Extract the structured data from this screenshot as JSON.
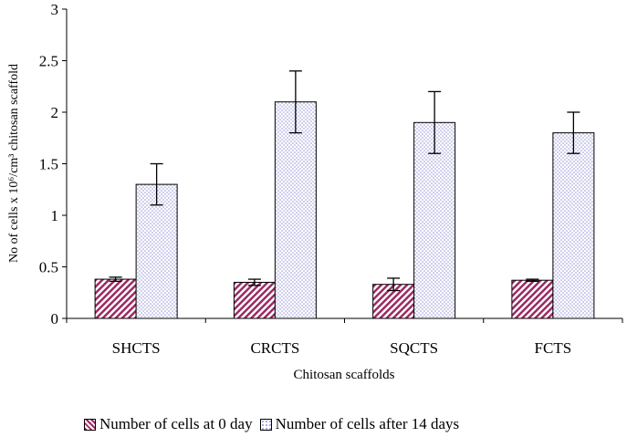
{
  "chart_data": {
    "type": "bar",
    "categories": [
      "SHCTS",
      "CRCTS",
      "SQCTS",
      "FCTS"
    ],
    "series": [
      {
        "name": "Number of cells at 0 day",
        "values": [
          0.38,
          0.35,
          0.33,
          0.37
        ],
        "error_low": [
          0.36,
          0.32,
          0.27,
          0.36
        ],
        "error_high": [
          0.4,
          0.38,
          0.39,
          0.38
        ],
        "color": "#9b2a63",
        "pattern": "diagonal-stripes"
      },
      {
        "name": "Number of cells after 14 days",
        "values": [
          1.3,
          2.1,
          1.9,
          1.8
        ],
        "error_low": [
          1.1,
          1.8,
          1.6,
          1.6
        ],
        "error_high": [
          1.5,
          2.4,
          2.2,
          2.0
        ],
        "color": "#8f8fd6",
        "pattern": "dots"
      }
    ],
    "xlabel": "Chitosan scaffolds",
    "ylabel": "No of cells x 10⁶/cm³ chitosan scaffold",
    "yticks": [
      "0",
      "0.5",
      "1",
      "1.5",
      "2",
      "2.5",
      "3"
    ],
    "ylim": [
      0,
      3
    ],
    "grid": false,
    "legend_position": "bottom"
  }
}
